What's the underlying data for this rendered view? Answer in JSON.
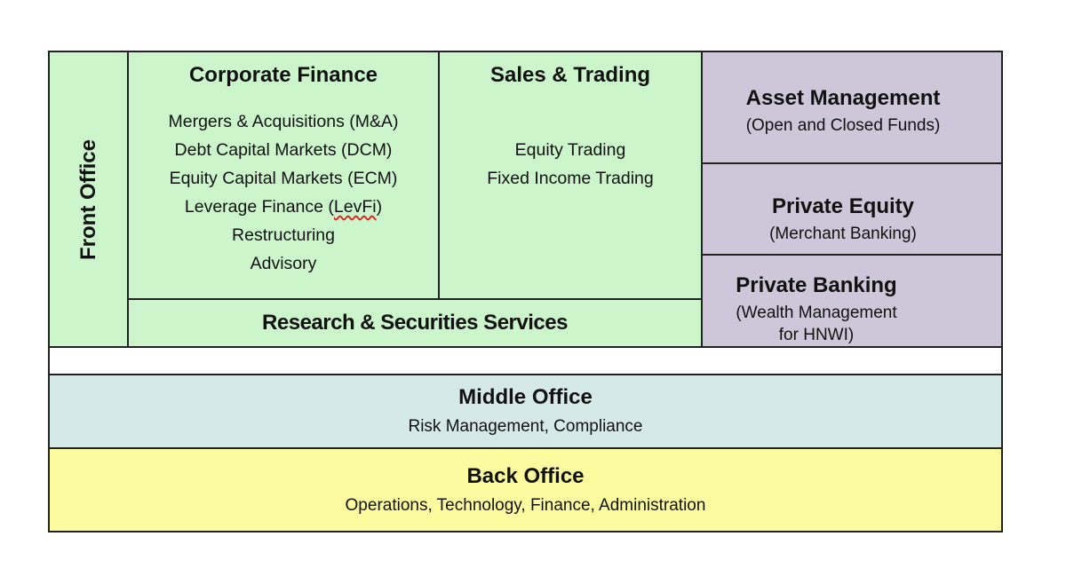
{
  "front_office": {
    "label": "Front Office"
  },
  "corporate_finance": {
    "title": "Corporate Finance",
    "items": [
      "Mergers & Acquisitions (M&A)",
      "Debt Capital Markets (DCM)",
      "Equity Capital Markets (ECM)",
      "Leverage Finance (",
      "Restructuring",
      "Advisory"
    ],
    "levfi_abbr": "LevFi",
    "levfi_close": ")"
  },
  "sales_trading": {
    "title": "Sales & Trading",
    "items": [
      "Equity Trading",
      "Fixed Income Trading"
    ]
  },
  "research": {
    "title": "Research & Securities Services"
  },
  "asset_management": {
    "title": "Asset Management",
    "subtitle": "(Open and Closed Funds)"
  },
  "private_equity": {
    "title": "Private Equity",
    "subtitle": "(Merchant Banking)"
  },
  "private_banking": {
    "title": "Private Banking",
    "subtitle_line1": "(Wealth Management",
    "subtitle_line2": "for HNWI)"
  },
  "middle_office": {
    "title": "Middle Office",
    "subtitle": "Risk Management, Compliance"
  },
  "back_office": {
    "title": "Back Office",
    "subtitle": "Operations, Technology, Finance, Administration"
  },
  "colors": {
    "front_office": "#ccf5cc",
    "other_divisions": "#cdc7d9",
    "middle_office": "#d6e9e9",
    "back_office": "#fdfb9f",
    "border": "#222222"
  }
}
